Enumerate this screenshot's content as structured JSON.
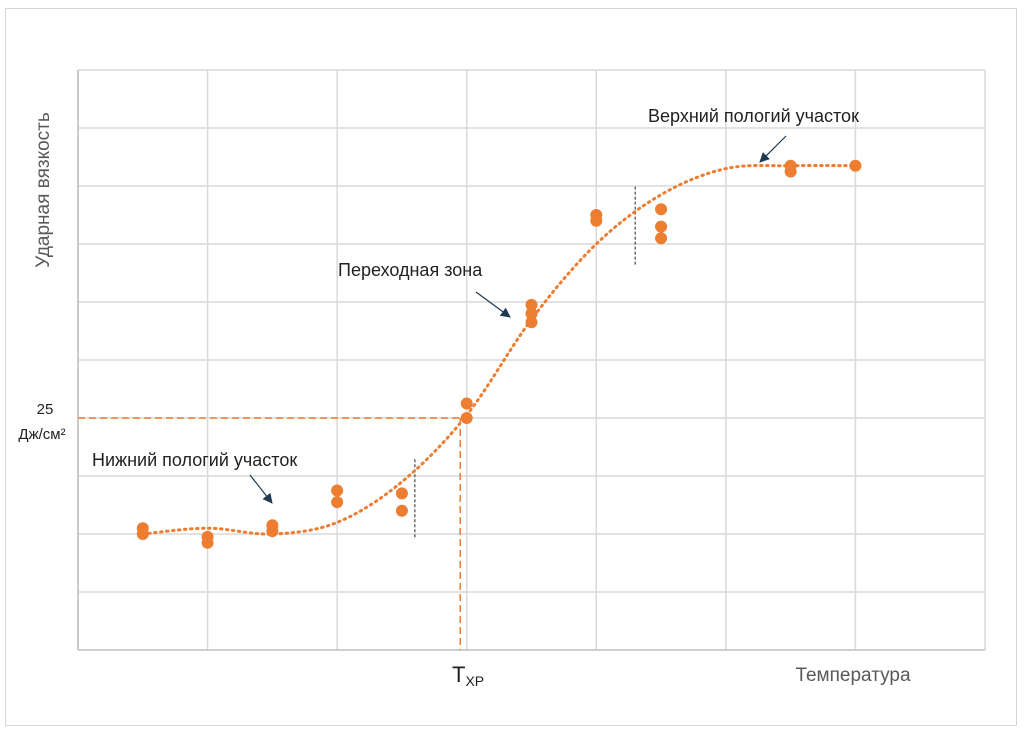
{
  "chart_data": {
    "type": "scatter",
    "ylabel": "Ударная вязкость",
    "xlabel": "Температура",
    "x_tick_label_main": "T",
    "x_tick_label_sub": "ХР",
    "y_marker_value": "25",
    "y_marker_unit": "Дж/см²",
    "annotations": {
      "lower": "Нижний пологий участок",
      "transition": "Переходная зона",
      "upper": "Верхний пологий участок"
    },
    "grid": true,
    "legend": "none",
    "xlim": [
      0,
      14
    ],
    "ylim": [
      0,
      10
    ],
    "points": [
      [
        1,
        2.0
      ],
      [
        1,
        2.1
      ],
      [
        2,
        1.85
      ],
      [
        2,
        1.95
      ],
      [
        3,
        2.05
      ],
      [
        3,
        2.15
      ],
      [
        4,
        2.55
      ],
      [
        4,
        2.75
      ],
      [
        5,
        2.4
      ],
      [
        5,
        2.7
      ],
      [
        6,
        4.0
      ],
      [
        6,
        4.25
      ],
      [
        7,
        5.65
      ],
      [
        7,
        5.8
      ],
      [
        7,
        5.95
      ],
      [
        8,
        7.4
      ],
      [
        8,
        7.5
      ],
      [
        9,
        7.1
      ],
      [
        9,
        7.3
      ],
      [
        9,
        7.6
      ],
      [
        11,
        8.25
      ],
      [
        11,
        8.35
      ],
      [
        12,
        8.35
      ]
    ],
    "trend": [
      [
        1,
        2.0
      ],
      [
        2,
        2.1
      ],
      [
        3,
        2.0
      ],
      [
        4,
        2.2
      ],
      [
        5,
        2.9
      ],
      [
        6,
        4.05
      ],
      [
        7,
        5.7
      ],
      [
        8,
        7.0
      ],
      [
        9,
        7.85
      ],
      [
        10,
        8.3
      ],
      [
        11,
        8.35
      ],
      [
        12,
        8.35
      ]
    ],
    "guide_x": 5.9,
    "guide_y": 4.0,
    "boundaries_x": [
      5.2,
      8.6
    ],
    "colors": {
      "series": "#ED7D31",
      "grid": "#D9D9D9",
      "axis": "#BFBFBF",
      "arrow": "#1F3A50",
      "text": "#222222",
      "axis_title": "#595959"
    }
  }
}
